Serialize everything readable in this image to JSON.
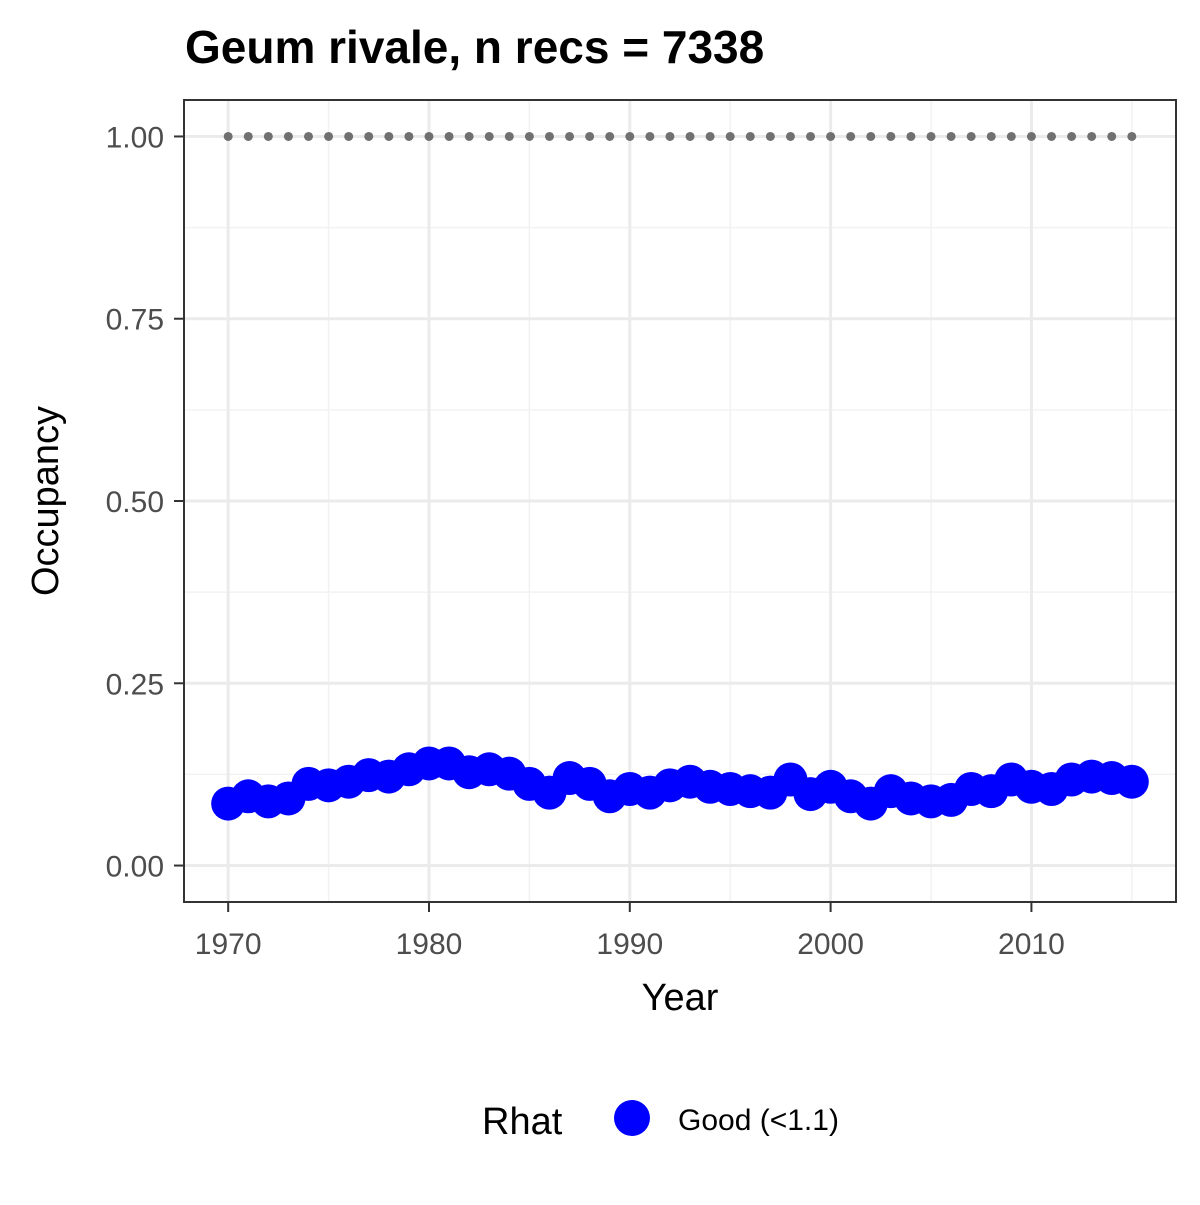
{
  "chart_data": {
    "type": "scatter",
    "title": "Geum rivale, n recs = 7338",
    "xlabel": "Year",
    "ylabel": "Occupancy",
    "xlim": [
      1967.8,
      2017.2
    ],
    "ylim": [
      -0.05,
      1.05
    ],
    "x_ticks": [
      1970,
      1980,
      1990,
      2000,
      2010
    ],
    "x_tick_labels": [
      "1970",
      "1980",
      "1990",
      "2000",
      "2010"
    ],
    "y_ticks": [
      0,
      0.25,
      0.5,
      0.75,
      1
    ],
    "y_tick_labels": [
      "0.00",
      "0.25",
      "0.50",
      "0.75",
      "1.00"
    ],
    "grid": true,
    "legend": {
      "title": "Rhat",
      "position": "bottom",
      "entries": [
        {
          "label": "Good (<1.1)",
          "color": "#0000ff"
        }
      ]
    },
    "series": [
      {
        "name": "Good (<1.1)",
        "color": "#0000ff",
        "x": [
          1970,
          1971,
          1972,
          1973,
          1974,
          1975,
          1976,
          1977,
          1978,
          1979,
          1980,
          1981,
          1982,
          1983,
          1984,
          1985,
          1986,
          1987,
          1988,
          1989,
          1990,
          1991,
          1992,
          1993,
          1994,
          1995,
          1996,
          1997,
          1998,
          1999,
          2000,
          2001,
          2002,
          2003,
          2004,
          2005,
          2006,
          2007,
          2008,
          2009,
          2010,
          2011,
          2012,
          2013,
          2014,
          2015
        ],
        "y": [
          0.085,
          0.095,
          0.088,
          0.092,
          0.112,
          0.11,
          0.115,
          0.124,
          0.122,
          0.132,
          0.14,
          0.14,
          0.128,
          0.132,
          0.126,
          0.112,
          0.1,
          0.12,
          0.112,
          0.095,
          0.105,
          0.1,
          0.11,
          0.115,
          0.108,
          0.105,
          0.102,
          0.1,
          0.118,
          0.098,
          0.108,
          0.095,
          0.085,
          0.102,
          0.092,
          0.088,
          0.09,
          0.105,
          0.102,
          0.118,
          0.108,
          0.105,
          0.118,
          0.122,
          0.12,
          0.115
        ]
      },
      {
        "name": "",
        "color": "#707070",
        "style": "dotted",
        "x": [
          1970,
          1971,
          1972,
          1973,
          1974,
          1975,
          1976,
          1977,
          1978,
          1979,
          1980,
          1981,
          1982,
          1983,
          1984,
          1985,
          1986,
          1987,
          1988,
          1989,
          1990,
          1991,
          1992,
          1993,
          1994,
          1995,
          1996,
          1997,
          1998,
          1999,
          2000,
          2001,
          2002,
          2003,
          2004,
          2005,
          2006,
          2007,
          2008,
          2009,
          2010,
          2011,
          2012,
          2013,
          2014,
          2015
        ],
        "y": [
          1,
          1,
          1,
          1,
          1,
          1,
          1,
          1,
          1,
          1,
          1,
          1,
          1,
          1,
          1,
          1,
          1,
          1,
          1,
          1,
          1,
          1,
          1,
          1,
          1,
          1,
          1,
          1,
          1,
          1,
          1,
          1,
          1,
          1,
          1,
          1,
          1,
          1,
          1,
          1,
          1,
          1,
          1,
          1,
          1,
          1
        ]
      }
    ]
  }
}
